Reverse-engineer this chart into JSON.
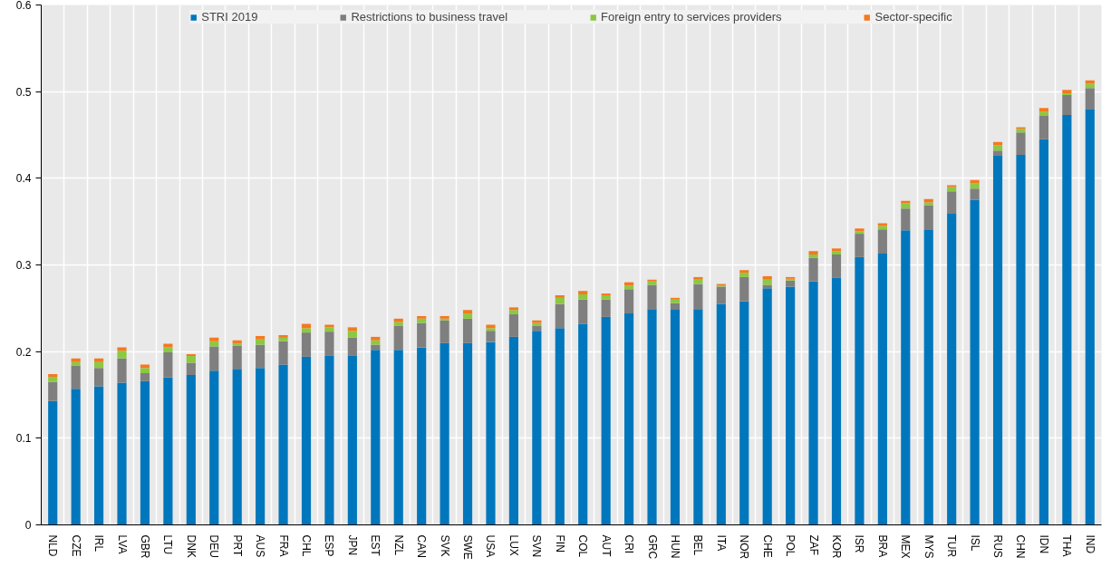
{
  "chart_data": {
    "type": "bar",
    "stacked": true,
    "legend": "top",
    "grid": true,
    "categories": [
      "NLD",
      "CZE",
      "IRL",
      "LVA",
      "GBR",
      "LTU",
      "DNK",
      "DEU",
      "PRT",
      "AUS",
      "FRA",
      "CHL",
      "ESP",
      "JPN",
      "EST",
      "NZL",
      "CAN",
      "SVK",
      "SWE",
      "USA",
      "LUX",
      "SVN",
      "FIN",
      "COL",
      "AUT",
      "CRI",
      "GRC",
      "HUN",
      "BEL",
      "ITA",
      "NOR",
      "CHE",
      "POL",
      "ZAF",
      "KOR",
      "ISR",
      "BRA",
      "MEX",
      "MYS",
      "TUR",
      "ISL",
      "RUS",
      "CHN",
      "IDN",
      "THA",
      "IND"
    ],
    "series": [
      {
        "name": "STRI 2019",
        "color": "#0077bd",
        "values": [
          0.143,
          0.157,
          0.16,
          0.164,
          0.166,
          0.17,
          0.173,
          0.178,
          0.18,
          0.181,
          0.185,
          0.194,
          0.195,
          0.195,
          0.202,
          0.202,
          0.205,
          0.21,
          0.21,
          0.211,
          0.217,
          0.224,
          0.227,
          0.232,
          0.24,
          0.244,
          0.249,
          0.249,
          0.249,
          0.255,
          0.258,
          0.273,
          0.275,
          0.281,
          0.285,
          0.309,
          0.313,
          0.34,
          0.341,
          0.359,
          0.375,
          0.426,
          0.427,
          0.445,
          0.473,
          0.48
        ]
      },
      {
        "name": "Restrictions to business travel",
        "color": "#7f7f7f",
        "values": [
          0.022,
          0.027,
          0.021,
          0.028,
          0.009,
          0.029,
          0.014,
          0.028,
          0.027,
          0.027,
          0.027,
          0.028,
          0.028,
          0.021,
          0.006,
          0.028,
          0.028,
          0.026,
          0.028,
          0.013,
          0.026,
          0.006,
          0.028,
          0.028,
          0.02,
          0.028,
          0.028,
          0.007,
          0.029,
          0.02,
          0.028,
          0.004,
          0.007,
          0.027,
          0.027,
          0.027,
          0.028,
          0.025,
          0.028,
          0.026,
          0.013,
          0.006,
          0.026,
          0.027,
          0.023,
          0.024
        ]
      },
      {
        "name": "Foreign entry to services providers",
        "color": "#8cc841",
        "values": [
          0.006,
          0.004,
          0.007,
          0.009,
          0.006,
          0.006,
          0.008,
          0.006,
          0.002,
          0.006,
          0.004,
          0.005,
          0.005,
          0.008,
          0.005,
          0.004,
          0.005,
          0.002,
          0.006,
          0.003,
          0.005,
          0.003,
          0.007,
          0.006,
          0.005,
          0.004,
          0.004,
          0.004,
          0.005,
          0.001,
          0.005,
          0.006,
          0.002,
          0.004,
          0.004,
          0.003,
          0.004,
          0.006,
          0.003,
          0.005,
          0.006,
          0.006,
          0.004,
          0.005,
          0.002,
          0.005
        ]
      },
      {
        "name": "Sector-specific",
        "color": "#f47920",
        "values": [
          0.003,
          0.004,
          0.004,
          0.004,
          0.004,
          0.004,
          0.002,
          0.004,
          0.004,
          0.004,
          0.003,
          0.005,
          0.003,
          0.004,
          0.004,
          0.004,
          0.003,
          0.003,
          0.004,
          0.004,
          0.003,
          0.003,
          0.003,
          0.004,
          0.002,
          0.004,
          0.002,
          0.002,
          0.003,
          0.002,
          0.003,
          0.004,
          0.002,
          0.004,
          0.003,
          0.003,
          0.003,
          0.003,
          0.004,
          0.002,
          0.004,
          0.004,
          0.002,
          0.004,
          0.004,
          0.004
        ]
      }
    ],
    "ylim": [
      0,
      0.6
    ],
    "yticks": [
      0,
      0.1,
      0.2,
      0.3,
      0.4,
      0.5,
      0.6
    ]
  }
}
